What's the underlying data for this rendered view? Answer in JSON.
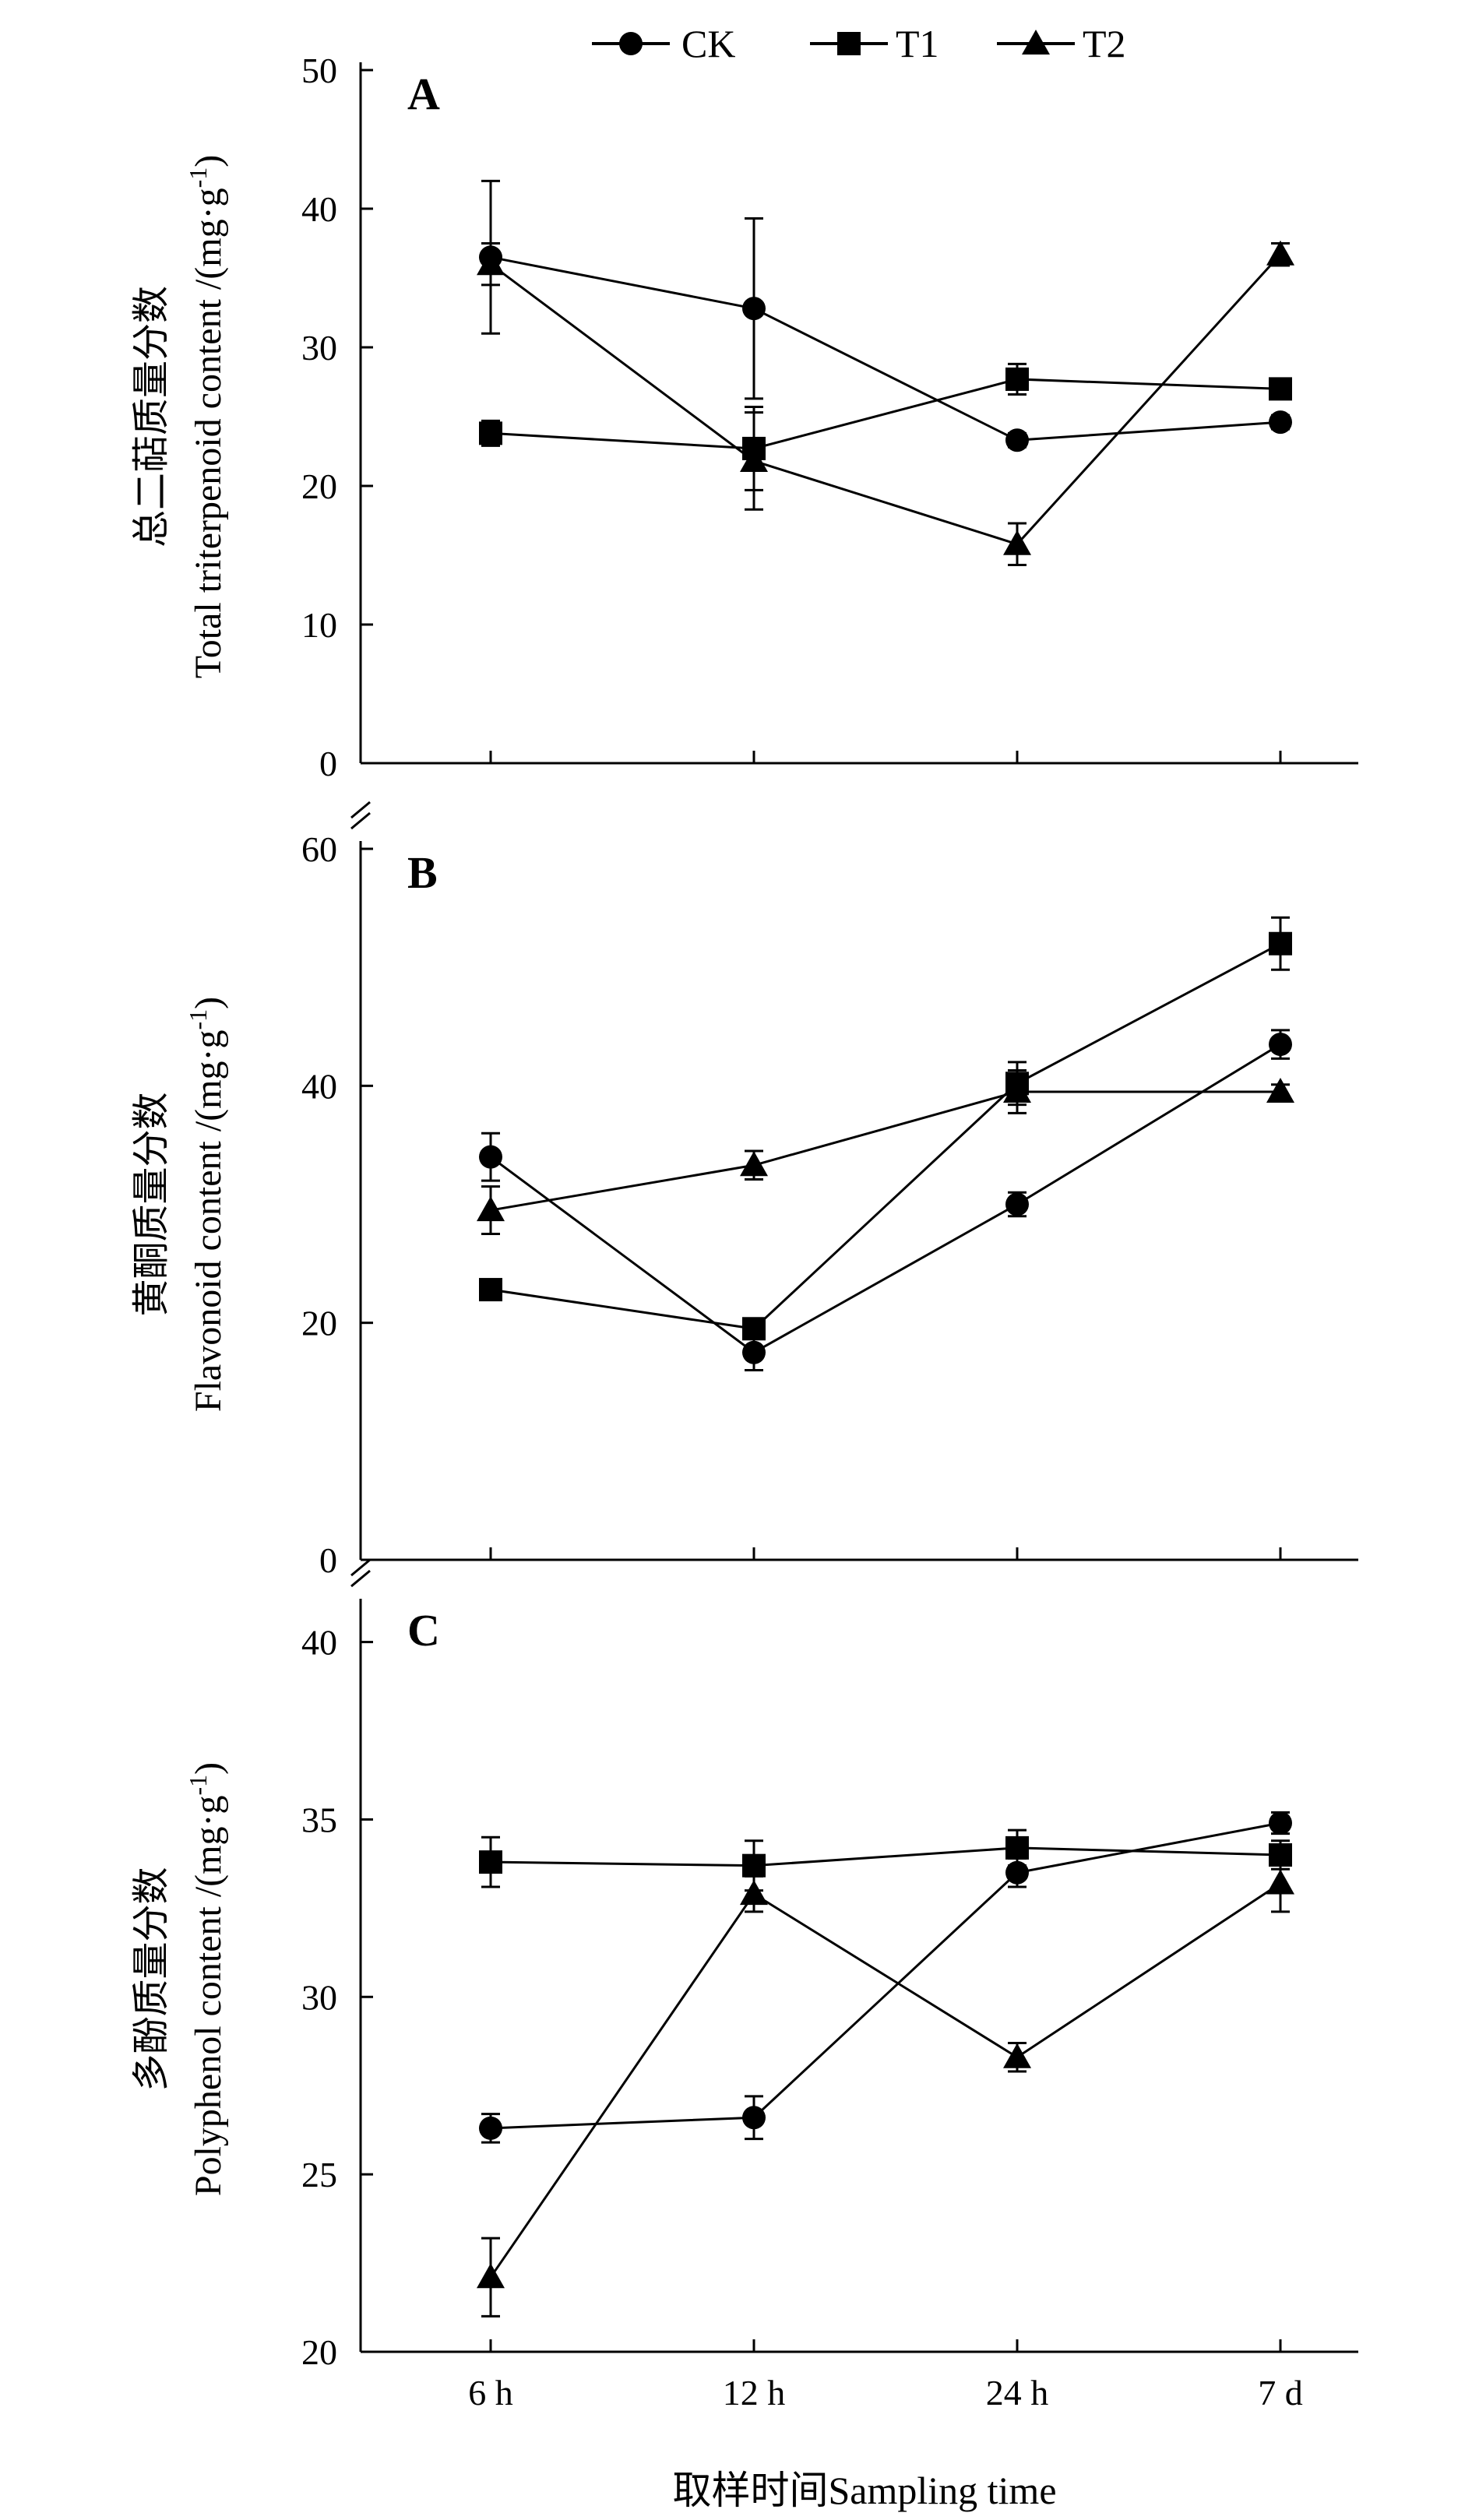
{
  "legend": [
    {
      "name": "CK",
      "marker": "circle"
    },
    {
      "name": "T1",
      "marker": "square"
    },
    {
      "name": "T2",
      "marker": "triangle"
    }
  ],
  "x_axis": {
    "categories": [
      "6 h",
      "12 h",
      "24 h",
      "7 d"
    ],
    "title": "取样时间Sampling time"
  },
  "colors": {
    "ink": "#000000",
    "background": "#ffffff"
  },
  "chart_data": [
    {
      "type": "line",
      "panel": "A",
      "categories": [
        "6 h",
        "12 h",
        "24 h",
        "7 d"
      ],
      "ylabel_cn": "总二萜质量分数",
      "ylabel_en": "Total triterpenoid content /(mg·g",
      "ylabel_unit_sup": "-1",
      "ylabel_tail": ")",
      "ylim": [
        0,
        50
      ],
      "yticks": [
        0,
        10,
        20,
        30,
        40,
        50
      ],
      "series": [
        {
          "name": "CK",
          "marker": "circle",
          "values": [
            36.5,
            32.8,
            23.3,
            24.6
          ],
          "errors": [
            5.5,
            6.5,
            0.5,
            0.5
          ]
        },
        {
          "name": "T1",
          "marker": "square",
          "values": [
            23.8,
            22.7,
            27.7,
            27.0
          ],
          "errors": [
            0.9,
            3.0,
            1.1,
            0.4
          ]
        },
        {
          "name": "T2",
          "marker": "triangle",
          "values": [
            36.0,
            21.8,
            15.8,
            36.7
          ],
          "errors": [
            1.5,
            3.5,
            1.5,
            0.8
          ]
        }
      ]
    },
    {
      "type": "line",
      "panel": "B",
      "categories": [
        "6 h",
        "12 h",
        "24 h",
        "7 d"
      ],
      "ylabel_cn": "黄酮质量分数",
      "ylabel_en": "Flavonoid content /(mg·g",
      "ylabel_unit_sup": "-1",
      "ylabel_tail": ")",
      "ylim": [
        0,
        60
      ],
      "yticks": [
        0,
        20,
        40,
        60
      ],
      "series": [
        {
          "name": "CK",
          "marker": "circle",
          "values": [
            34.0,
            17.5,
            30.0,
            43.5
          ],
          "errors": [
            2.0,
            1.5,
            1.0,
            1.2
          ]
        },
        {
          "name": "T1",
          "marker": "square",
          "values": [
            22.8,
            19.5,
            40.2,
            52.0
          ],
          "errors": [
            0.5,
            0.7,
            1.8,
            2.2
          ]
        },
        {
          "name": "T2",
          "marker": "triangle",
          "values": [
            29.5,
            33.3,
            39.5,
            39.5
          ],
          "errors": [
            2.0,
            1.2,
            1.8,
            0.6
          ]
        }
      ]
    },
    {
      "type": "line",
      "panel": "C",
      "categories": [
        "6 h",
        "12 h",
        "24 h",
        "7 d"
      ],
      "ylabel_cn": "多酚质量分数",
      "ylabel_en": "Polyphenol content /(mg·g",
      "ylabel_unit_sup": "-1",
      "ylabel_tail": ")",
      "ylim": [
        20,
        41
      ],
      "yticks": [
        20,
        25,
        30,
        35,
        40
      ],
      "series": [
        {
          "name": "CK",
          "marker": "circle",
          "values": [
            26.3,
            26.6,
            33.5,
            34.9
          ],
          "errors": [
            0.4,
            0.6,
            0.4,
            0.3
          ]
        },
        {
          "name": "T1",
          "marker": "square",
          "values": [
            33.8,
            33.7,
            34.2,
            34.0
          ],
          "errors": [
            0.7,
            0.7,
            0.5,
            0.4
          ]
        },
        {
          "name": "T2",
          "marker": "triangle",
          "values": [
            22.1,
            32.9,
            28.3,
            33.2
          ],
          "errors": [
            1.1,
            0.5,
            0.4,
            0.8
          ]
        }
      ]
    }
  ]
}
